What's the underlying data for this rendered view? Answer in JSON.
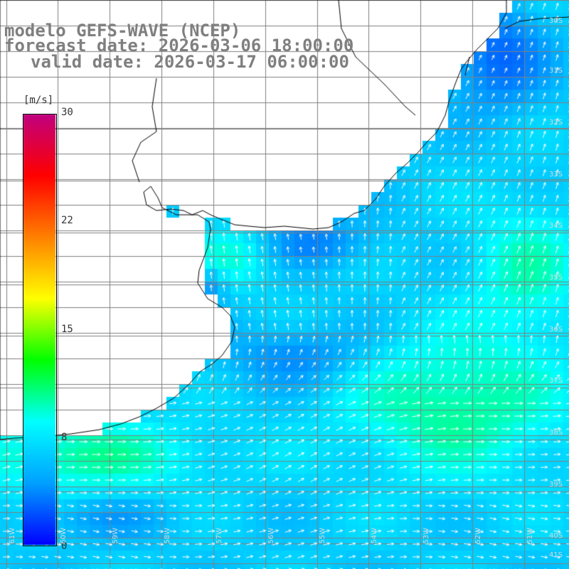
{
  "title": {
    "line1": "modelo GEFS-WAVE (NCEP)",
    "line2": "forecast date: 2026-03-06 18:00:00",
    "line3": "valid date: 2026-03-17 06:00:00"
  },
  "colorbar": {
    "unit": "[m/s]",
    "ticks": [
      "30",
      "22",
      "15",
      "8",
      "0"
    ],
    "range": [
      0,
      30
    ],
    "colors": [
      "#0000ff",
      "#00a0ff",
      "#00ffff",
      "#00ff00",
      "#ffff00",
      "#ff8000",
      "#ff0000",
      "#c00080"
    ]
  },
  "grid": {
    "lat_labels": [
      "30S",
      "31S",
      "32S",
      "33S",
      "34S",
      "35S",
      "36S",
      "37S",
      "38S",
      "39S",
      "40S",
      "41S"
    ],
    "lon_labels": [
      "61W",
      "60W",
      "59W",
      "58W",
      "57W",
      "56W",
      "55W",
      "54W",
      "53W",
      "52W",
      "51W"
    ]
  },
  "map": {
    "region": "Rio de la Plata / SW Atlantic",
    "field": "10 m wind speed with direction arrows",
    "land_color": "#ffffff",
    "coast_color": "#000000",
    "grid_color": "#808080"
  }
}
